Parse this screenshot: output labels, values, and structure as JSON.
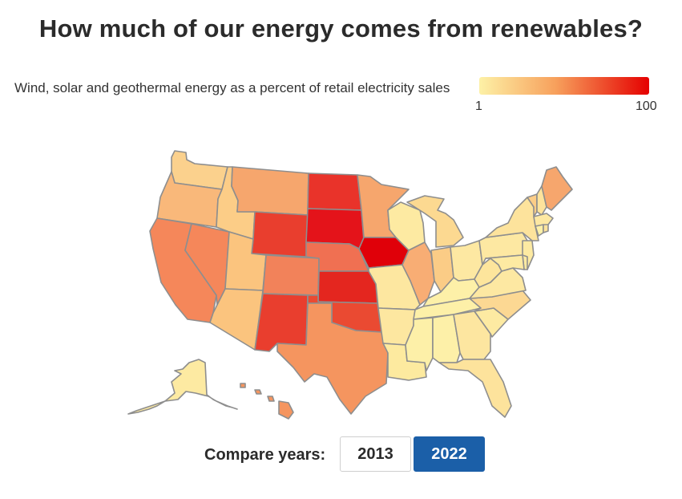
{
  "title": "How much of our energy comes from renewables?",
  "legend": {
    "label": "Wind, solar and geothermal energy as a percent of retail electricity sales",
    "min": "1",
    "max": "100",
    "color_low": "#fdf1a6",
    "color_mid": "#f7a05c",
    "color_high": "#e50000"
  },
  "controls": {
    "compare_label": "Compare years:",
    "years": [
      "2013",
      "2022"
    ],
    "selected_year": "2022"
  },
  "colors": {
    "button_active": "#1b5fa8",
    "state_border": "#8e8e8e"
  },
  "states": [
    {
      "code": "WA",
      "fill": "#fbd18d"
    },
    {
      "code": "OR",
      "fill": "#f9b87a"
    },
    {
      "code": "CA",
      "fill": "#f5875a"
    },
    {
      "code": "NV",
      "fill": "#f5875a"
    },
    {
      "code": "ID",
      "fill": "#fccd87"
    },
    {
      "code": "MT",
      "fill": "#f6a66d"
    },
    {
      "code": "WY",
      "fill": "#e93e2e"
    },
    {
      "code": "UT",
      "fill": "#fbc47e"
    },
    {
      "code": "AZ",
      "fill": "#fbc47e"
    },
    {
      "code": "CO",
      "fill": "#f2825a"
    },
    {
      "code": "NM",
      "fill": "#e93e2e"
    },
    {
      "code": "ND",
      "fill": "#e9332a"
    },
    {
      "code": "SD",
      "fill": "#e4131a"
    },
    {
      "code": "NE",
      "fill": "#f07052"
    },
    {
      "code": "KS",
      "fill": "#e4261f"
    },
    {
      "code": "OK",
      "fill": "#ea4a32"
    },
    {
      "code": "TX",
      "fill": "#f5955f"
    },
    {
      "code": "MN",
      "fill": "#f6a66d"
    },
    {
      "code": "IA",
      "fill": "#e00009"
    },
    {
      "code": "MO",
      "fill": "#fde7a0"
    },
    {
      "code": "AR",
      "fill": "#fde7a0"
    },
    {
      "code": "LA",
      "fill": "#fdea9f"
    },
    {
      "code": "WI",
      "fill": "#fdeaa2"
    },
    {
      "code": "IL",
      "fill": "#f8ad74"
    },
    {
      "code": "MI",
      "fill": "#fcd991"
    },
    {
      "code": "IN",
      "fill": "#fbcc86"
    },
    {
      "code": "OH",
      "fill": "#fde8a2"
    },
    {
      "code": "KY",
      "fill": "#fdf0a8"
    },
    {
      "code": "TN",
      "fill": "#fdf0a8"
    },
    {
      "code": "MS",
      "fill": "#fdf0a8"
    },
    {
      "code": "AL",
      "fill": "#fdf0a8"
    },
    {
      "code": "GA",
      "fill": "#fde6a0"
    },
    {
      "code": "FL",
      "fill": "#fde39c"
    },
    {
      "code": "SC",
      "fill": "#fdeaa2"
    },
    {
      "code": "NC",
      "fill": "#fcd893"
    },
    {
      "code": "VA",
      "fill": "#fde8a2"
    },
    {
      "code": "WV",
      "fill": "#fde59c"
    },
    {
      "code": "PA",
      "fill": "#fde8a2"
    },
    {
      "code": "NY",
      "fill": "#fde39c"
    },
    {
      "code": "VT",
      "fill": "#fccd87"
    },
    {
      "code": "NH",
      "fill": "#fde39c"
    },
    {
      "code": "ME",
      "fill": "#f6a66d"
    },
    {
      "code": "MA",
      "fill": "#fde8a2"
    },
    {
      "code": "CT",
      "fill": "#fdf0a8"
    },
    {
      "code": "RI",
      "fill": "#fde39c"
    },
    {
      "code": "NJ",
      "fill": "#fdeaa2"
    },
    {
      "code": "DE",
      "fill": "#fdeaa2"
    },
    {
      "code": "MD",
      "fill": "#fdeaa2"
    },
    {
      "code": "AK",
      "fill": "#fdeaa2"
    },
    {
      "code": "HI",
      "fill": "#f5955f"
    }
  ]
}
